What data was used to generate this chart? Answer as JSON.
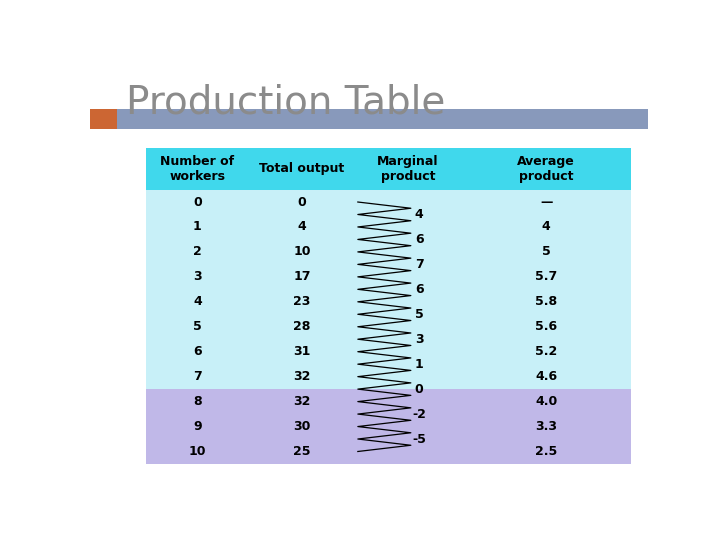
{
  "title": "Production Table",
  "title_color": "#8B8B8B",
  "title_fontsize": 28,
  "title_font": "Georgia",
  "header_bar_color1": "#CC6633",
  "header_bar_color2": "#8899BB",
  "bg_color": "#FFFFFF",
  "table_header_bg": "#40D8EC",
  "table_light_bg": "#C8F0F8",
  "table_dark_bg": "#C0B8E8",
  "col_headers": [
    "Number of\nworkers",
    "Total output",
    "Marginal\nproduct",
    "Average\nproduct"
  ],
  "workers": [
    "0",
    "1",
    "2",
    "3",
    "4",
    "5",
    "6",
    "7",
    "8",
    "9",
    "10"
  ],
  "total_output": [
    "0",
    "4",
    "10",
    "17",
    "23",
    "28",
    "31",
    "32",
    "32",
    "30",
    "25"
  ],
  "marginal_product": [
    "4",
    "6",
    "7",
    "6",
    "5",
    "3",
    "1",
    "0",
    "-2",
    "-5"
  ],
  "average_product": [
    "—",
    "4",
    "5",
    "5.7",
    "5.8",
    "5.6",
    "5.2",
    "4.6",
    "4.0",
    "3.3",
    "2.5"
  ],
  "highlight_rows": [
    8,
    9,
    10
  ]
}
